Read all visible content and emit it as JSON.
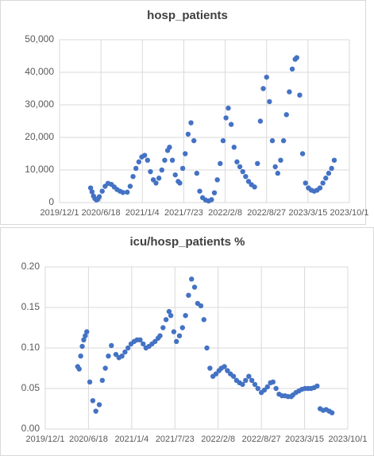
{
  "chart_data": [
    {
      "type": "scatter",
      "title": "hosp_patients",
      "color": "#4472c4",
      "grid": true,
      "xlim": [
        "2019/12/1",
        "2023/10/1"
      ],
      "xticks": [
        "2019/12/1",
        "2020/6/18",
        "2021/1/4",
        "2021/7/23",
        "2022/2/8",
        "2022/8/27",
        "2023/3/15",
        "2023/10/1"
      ],
      "ylim": [
        0,
        50000
      ],
      "yticks": [
        0,
        {
          "value": 10000,
          "label": "10,000"
        },
        {
          "value": 20000,
          "label": "20,000"
        },
        {
          "value": 30000,
          "label": "30,000"
        },
        {
          "value": 40000,
          "label": "40,000"
        },
        {
          "value": 50000,
          "label": "50,000"
        }
      ],
      "x": [
        "2020/4/29",
        "2020/5/6",
        "2020/5/13",
        "2020/5/20",
        "2020/5/27",
        "2020/6/3",
        "2020/6/10",
        "2020/6/24",
        "2020/7/8",
        "2020/7/22",
        "2020/8/7",
        "2020/8/21",
        "2020/9/4",
        "2020/9/18",
        "2020/10/2",
        "2020/10/23",
        "2020/11/6",
        "2020/11/20",
        "2020/12/4",
        "2020/12/18",
        "2021/1/1",
        "2021/1/15",
        "2021/1/29",
        "2021/2/12",
        "2021/2/26",
        "2021/3/11",
        "2021/3/25",
        "2021/4/8",
        "2021/4/22",
        "2021/5/6",
        "2021/5/15",
        "2021/5/29",
        "2021/6/12",
        "2021/6/26",
        "2021/7/4",
        "2021/7/18",
        "2021/7/30",
        "2021/8/13",
        "2021/8/27",
        "2021/9/10",
        "2021/9/24",
        "2021/10/8",
        "2021/10/22",
        "2021/11/5",
        "2021/11/20",
        "2021/12/4",
        "2021/12/18",
        "2022/1/1",
        "2022/1/15",
        "2022/1/29",
        "2022/2/12",
        "2022/2/23",
        "2022/3/9",
        "2022/3/23",
        "2022/4/6",
        "2022/4/20",
        "2022/5/4",
        "2022/5/18",
        "2022/6/1",
        "2022/6/15",
        "2022/6/30",
        "2022/7/14",
        "2022/7/28",
        "2022/8/11",
        "2022/8/27",
        "2022/9/10",
        "2022/9/24",
        "2022/10/8",
        "2022/10/20",
        "2022/11/3",
        "2022/11/17",
        "2022/12/1",
        "2022/12/15",
        "2022/12/29",
        "2023/1/12",
        "2023/1/20",
        "2023/2/3",
        "2023/2/17",
        "2023/3/3",
        "2023/3/17",
        "2023/3/31",
        "2023/4/14",
        "2023/4/28",
        "2023/5/12",
        "2023/5/26",
        "2023/6/9",
        "2023/6/23",
        "2023/7/7",
        "2023/7/20"
      ],
      "values": [
        4500,
        3300,
        2000,
        1200,
        800,
        1000,
        1800,
        3500,
        5000,
        5900,
        5600,
        4800,
        4000,
        3500,
        3100,
        3200,
        5000,
        8000,
        10500,
        12500,
        14000,
        14500,
        13000,
        9500,
        7000,
        6000,
        7500,
        10000,
        13000,
        16000,
        17000,
        13000,
        8500,
        6500,
        6000,
        10500,
        15000,
        21000,
        24500,
        19000,
        9000,
        3500,
        1500,
        800,
        500,
        900,
        3000,
        7000,
        12000,
        19000,
        26000,
        29000,
        24000,
        17000,
        12500,
        11000,
        9500,
        8000,
        6500,
        5500,
        4800,
        12000,
        25000,
        35000,
        38500,
        31000,
        19000,
        11000,
        9000,
        13000,
        19000,
        27000,
        34000,
        41000,
        44000,
        44500,
        33000,
        15000,
        6000,
        4500,
        3800,
        3500,
        3800,
        4500,
        6000,
        7500,
        9000,
        10500,
        13000
      ]
    },
    {
      "type": "scatter",
      "title": "icu/hosp_patients %",
      "color": "#4472c4",
      "grid": true,
      "xlim": [
        "2019/12/1",
        "2023/10/1"
      ],
      "xticks": [
        "2019/12/1",
        "2020/6/18",
        "2021/1/4",
        "2021/7/23",
        "2022/2/8",
        "2022/8/27",
        "2023/3/15",
        "2023/10/1"
      ],
      "ylim": [
        0,
        0.2
      ],
      "yticks": [
        {
          "value": 0,
          "label": "0.00"
        },
        {
          "value": 0.05,
          "label": "0.05"
        },
        {
          "value": 0.1,
          "label": "0.10"
        },
        {
          "value": 0.15,
          "label": "0.15"
        },
        {
          "value": 0.2,
          "label": "0.20"
        }
      ],
      "x": [
        "2020/4/29",
        "2020/5/6",
        "2020/5/13",
        "2020/5/20",
        "2020/5/27",
        "2020/6/3",
        "2020/6/10",
        "2020/6/24",
        "2020/7/8",
        "2020/7/22",
        "2020/8/7",
        "2020/8/21",
        "2020/9/4",
        "2020/9/18",
        "2020/10/2",
        "2020/10/23",
        "2020/11/6",
        "2020/11/20",
        "2020/12/4",
        "2020/12/18",
        "2021/1/1",
        "2021/1/15",
        "2021/1/29",
        "2021/2/12",
        "2021/2/26",
        "2021/3/11",
        "2021/3/25",
        "2021/4/8",
        "2021/4/22",
        "2021/5/6",
        "2021/5/15",
        "2021/5/29",
        "2021/6/12",
        "2021/6/26",
        "2021/7/4",
        "2021/7/18",
        "2021/7/30",
        "2021/8/13",
        "2021/8/27",
        "2021/9/10",
        "2021/9/24",
        "2021/10/8",
        "2021/10/22",
        "2021/11/5",
        "2021/11/20",
        "2021/12/4",
        "2021/12/18",
        "2022/1/1",
        "2022/1/15",
        "2022/1/29",
        "2022/2/12",
        "2022/2/23",
        "2022/3/9",
        "2022/3/23",
        "2022/4/6",
        "2022/4/20",
        "2022/5/4",
        "2022/5/18",
        "2022/6/1",
        "2022/6/15",
        "2022/6/30",
        "2022/7/14",
        "2022/7/28",
        "2022/8/11",
        "2022/8/27",
        "2022/9/10",
        "2022/9/24",
        "2022/10/8",
        "2022/10/20",
        "2022/11/3",
        "2022/11/17",
        "2022/12/1",
        "2022/12/15",
        "2022/12/29",
        "2023/1/12",
        "2023/1/20",
        "2023/2/3",
        "2023/2/17",
        "2023/3/3",
        "2023/3/17",
        "2023/3/31",
        "2023/4/14",
        "2023/4/28",
        "2023/5/12",
        "2023/5/26",
        "2023/6/9",
        "2023/6/23",
        "2023/7/7",
        "2023/7/20"
      ],
      "values": [
        0.077,
        0.074,
        0.09,
        0.102,
        0.11,
        0.115,
        0.12,
        0.058,
        0.035,
        0.022,
        0.03,
        0.06,
        0.075,
        0.09,
        0.103,
        0.092,
        0.088,
        0.09,
        0.095,
        0.1,
        0.105,
        0.108,
        0.11,
        0.11,
        0.105,
        0.1,
        0.102,
        0.105,
        0.108,
        0.112,
        0.115,
        0.125,
        0.135,
        0.145,
        0.14,
        0.12,
        0.108,
        0.115,
        0.125,
        0.14,
        0.165,
        0.185,
        0.175,
        0.155,
        0.152,
        0.135,
        0.1,
        0.075,
        0.065,
        0.068,
        0.072,
        0.075,
        0.077,
        0.072,
        0.068,
        0.065,
        0.06,
        0.057,
        0.055,
        0.06,
        0.065,
        0.06,
        0.055,
        0.05,
        0.045,
        0.048,
        0.052,
        0.057,
        0.058,
        0.05,
        0.043,
        0.041,
        0.041,
        0.04,
        0.04,
        0.042,
        0.045,
        0.047,
        0.049,
        0.05,
        0.05,
        0.05,
        0.051,
        0.053,
        0.025,
        0.023,
        0.024,
        0.022,
        0.02
      ]
    }
  ]
}
